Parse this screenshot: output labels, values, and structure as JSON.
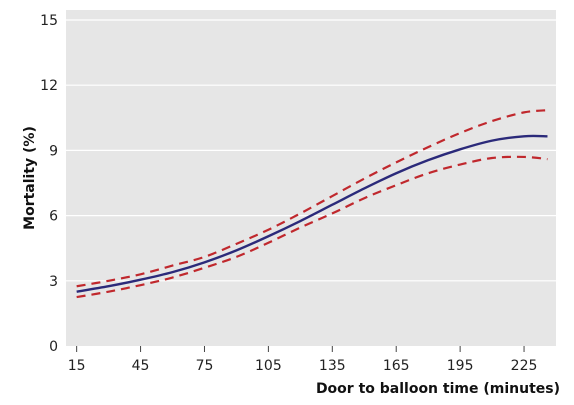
{
  "chart_data": {
    "type": "line",
    "title": "",
    "xlabel": "Door to balloon time (minutes)",
    "ylabel": "Mortality (%)",
    "xlim": [
      10,
      240
    ],
    "ylim": [
      0,
      15
    ],
    "x_ticks": [
      15,
      45,
      75,
      105,
      135,
      165,
      195,
      225
    ],
    "x_tick_labels": [
      "15",
      "45",
      "75",
      "105",
      "135",
      "165",
      "195",
      "225"
    ],
    "y_ticks": [
      0,
      3,
      6,
      9,
      12,
      15
    ],
    "y_tick_labels": [
      "0",
      "3",
      "6",
      "9",
      "12",
      "15"
    ],
    "grid": "horizontal",
    "background": "#e6e6e6",
    "legend": "none",
    "x": [
      15,
      30,
      45,
      60,
      75,
      90,
      105,
      120,
      135,
      150,
      165,
      180,
      195,
      210,
      225,
      236
    ],
    "series": [
      {
        "role": "estimate",
        "style": "solid",
        "color": "#2b2a7a",
        "values": [
          2.5,
          2.75,
          3.05,
          3.4,
          3.85,
          4.4,
          5.05,
          5.75,
          6.5,
          7.25,
          7.95,
          8.55,
          9.05,
          9.45,
          9.65,
          9.65
        ]
      },
      {
        "role": "upper",
        "style": "dashed",
        "color": "#c0282d",
        "values": [
          2.75,
          3.0,
          3.3,
          3.7,
          4.1,
          4.7,
          5.35,
          6.1,
          6.9,
          7.7,
          8.45,
          9.15,
          9.8,
          10.35,
          10.75,
          10.85
        ]
      },
      {
        "role": "lower",
        "style": "dashed",
        "color": "#c0282d",
        "values": [
          2.25,
          2.5,
          2.8,
          3.15,
          3.6,
          4.1,
          4.75,
          5.45,
          6.1,
          6.8,
          7.4,
          7.95,
          8.35,
          8.65,
          8.7,
          8.6
        ]
      }
    ]
  }
}
